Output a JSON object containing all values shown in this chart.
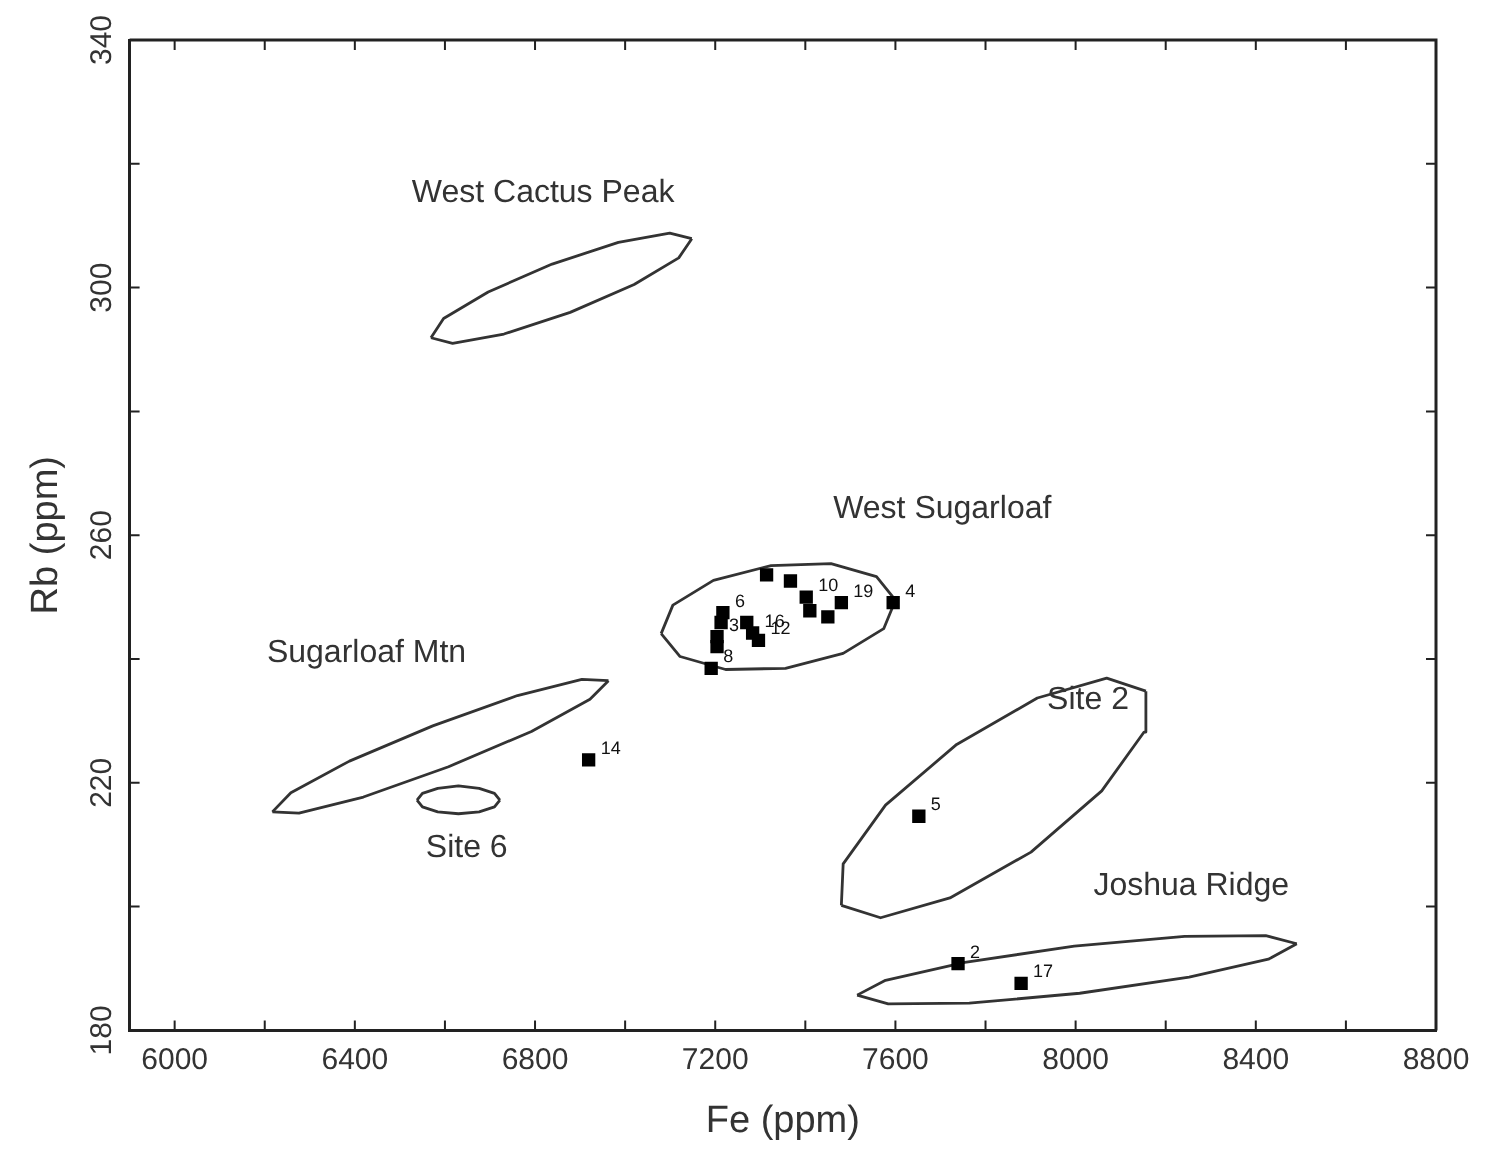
{
  "chart_data": {
    "type": "scatter",
    "xlabel": "Fe (ppm)",
    "ylabel": "Rb (ppm)",
    "xlim": [
      5900,
      8800
    ],
    "ylim": [
      180,
      340
    ],
    "xticks": [
      6000,
      {
        "value": 6200,
        "label": null
      },
      6400,
      {
        "value": 6600,
        "label": null
      },
      6800,
      {
        "value": 7000,
        "label": null
      },
      7200,
      {
        "value": 7400,
        "label": null
      },
      7600,
      {
        "value": 7800,
        "label": null
      },
      8000,
      {
        "value": 8200,
        "label": null
      },
      8400,
      {
        "value": 8600,
        "label": null
      },
      8800
    ],
    "yticks": [
      180,
      {
        "value": 200,
        "label": null
      },
      220,
      {
        "value": 240,
        "label": null
      },
      260,
      {
        "value": 280,
        "label": null
      },
      300,
      {
        "value": 320,
        "label": null
      },
      340
    ],
    "grid": false,
    "legend": false,
    "series": [
      {
        "marker": "square",
        "color": "#000000",
        "x": [
          7314,
          7367,
          7402,
          7410,
          7450,
          7480,
          7595,
          7217,
          7213,
          7204,
          7204,
          7191,
          7270,
          7283,
          7296,
          6919,
          7652,
          7739,
          7879
        ],
        "values": [
          253.6,
          252.6,
          250,
          247.8,
          246.8,
          249.1,
          249.1,
          247.5,
          245.9,
          243.6,
          242,
          238.5,
          245.9,
          244.2,
          243,
          223.7,
          214.6,
          190.8,
          187.6
        ]
      },
      {
        "type": "line",
        "name": "West Cactus Peak",
        "marker": "none",
        "color": "#333333",
        "x": [
          6569,
          6597,
          6696,
          6838,
          6985,
          7099,
          7148
        ],
        "values": [
          291.9,
          295,
          299.3,
          303.8,
          307.3,
          308.8,
          307.9
        ]
      },
      {
        "type": "line",
        "marker": "none",
        "color": "#333333",
        "x": [
          6569,
          6617,
          6731,
          6878,
          7020,
          7119,
          7148
        ],
        "values": [
          291.9,
          291,
          292.5,
          296,
          300.5,
          304.8,
          307.9
        ]
      },
      {
        "type": "line",
        "name": "West Sugarloaf",
        "marker": "none",
        "color": "#333333",
        "x": [
          7080,
          7106,
          7196,
          7324,
          7457,
          7558,
          7600
        ],
        "values": [
          244.1,
          248.7,
          252.7,
          255.1,
          255.4,
          253.3,
          249.5
        ]
      },
      {
        "type": "line",
        "marker": "none",
        "color": "#333333",
        "x": [
          7080,
          7122,
          7223,
          7356,
          7484,
          7574,
          7600
        ],
        "values": [
          244.1,
          240.4,
          238.3,
          238.5,
          240.9,
          244.9,
          249.5
        ]
      },
      {
        "type": "line",
        "name": "Sugarloaf Mtn",
        "marker": "none",
        "color": "#333333",
        "x": [
          6217,
          6258,
          6388,
          6573,
          6761,
          6904,
          6963
        ],
        "values": [
          215.3,
          218.4,
          223.5,
          229.2,
          234.1,
          236.7,
          236.5
        ]
      },
      {
        "type": "line",
        "marker": "none",
        "color": "#333333",
        "x": [
          6217,
          6276,
          6419,
          6608,
          6792,
          6922,
          6963
        ],
        "values": [
          215.3,
          215.1,
          217.7,
          222.6,
          228.3,
          233.5,
          236.5
        ]
      },
      {
        "type": "line",
        "name": "Site 6",
        "marker": "none",
        "color": "#333333",
        "x": [
          6538,
          6550,
          6584,
          6630,
          6676,
          6710,
          6722
        ],
        "values": [
          217.2,
          218.3,
          219.1,
          219.5,
          219.1,
          218.3,
          217.2
        ]
      },
      {
        "type": "line",
        "marker": "none",
        "color": "#333333",
        "x": [
          6538,
          6550,
          6584,
          6630,
          6676,
          6710,
          6722
        ],
        "values": [
          217.2,
          216.1,
          215.3,
          215,
          215.3,
          216.1,
          217.2
        ]
      },
      {
        "type": "line",
        "name": "Site 2",
        "marker": "none",
        "color": "#333333",
        "x": [
          7480,
          7484,
          7578,
          7736,
          7915,
          8069,
          8156
        ],
        "values": [
          200.2,
          206.9,
          216.4,
          226.2,
          233.7,
          236.9,
          234.8
        ]
      },
      {
        "type": "line",
        "marker": "none",
        "color": "#333333",
        "x": [
          7480,
          7567,
          7721,
          7901,
          8058,
          8152,
          8156
        ],
        "values": [
          200.2,
          198.2,
          201.4,
          208.8,
          218.7,
          228.2,
          234.8
        ]
      },
      {
        "type": "line",
        "name": "Joshua Ridge",
        "marker": "none",
        "color": "#333333",
        "x": [
          7515,
          7578,
          7754,
          7997,
          8242,
          8422,
          8491
        ],
        "values": [
          185.7,
          188.1,
          191,
          193.6,
          195.2,
          195.3,
          194
        ]
      },
      {
        "type": "line",
        "marker": "none",
        "color": "#333333",
        "x": [
          7515,
          7584,
          7764,
          8009,
          8252,
          8428,
          8491
        ],
        "values": [
          185.7,
          184.3,
          184.4,
          186,
          188.6,
          191.5,
          194
        ]
      }
    ],
    "annotations": [
      {
        "text": "10",
        "x": 7402,
        "y": 250
      },
      {
        "text": "19",
        "x": 7480,
        "y": 249.1
      },
      {
        "text": "4",
        "x": 7595,
        "y": 249.1
      },
      {
        "text": "6",
        "x": 7217,
        "y": 247.5
      },
      {
        "text": "3",
        "x": 7204,
        "y": 243.6
      },
      {
        "text": "8",
        "x": 7191,
        "y": 238.5
      },
      {
        "text": "16",
        "x": 7283,
        "y": 244.2
      },
      {
        "text": "12",
        "x": 7296,
        "y": 243
      },
      {
        "text": "14",
        "x": 6919,
        "y": 223.7
      },
      {
        "text": "5",
        "x": 7652,
        "y": 214.6
      },
      {
        "text": "2",
        "x": 7739,
        "y": 190.8
      },
      {
        "text": "17",
        "x": 7879,
        "y": 187.6
      }
    ]
  }
}
